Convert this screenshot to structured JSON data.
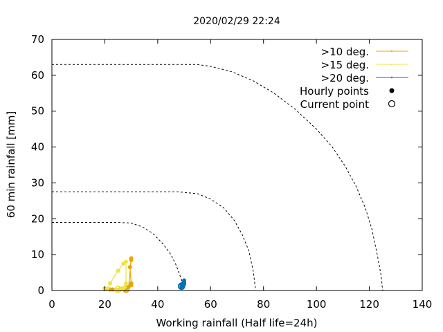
{
  "chart_data": {
    "type": "line",
    "title": "2020/02/29 22:24",
    "xlabel": "Working rainfall (Half life=24h)",
    "ylabel": "60 min rainfall [mm]",
    "xlim": [
      0,
      140
    ],
    "ylim": [
      0,
      70
    ],
    "xticks": [
      "0",
      "20",
      "40",
      "60",
      "80",
      "100",
      "120",
      "140"
    ],
    "yticks": [
      "0",
      "10",
      "20",
      "30",
      "40",
      "50",
      "60",
      "70"
    ],
    "grid": false,
    "legend_position": "top-right",
    "legend": [
      {
        "label": ">10 deg.",
        "kind": "line",
        "color": "#E5A800"
      },
      {
        "label": ">15 deg.",
        "kind": "line",
        "color": "#F0E442"
      },
      {
        "label": ">20 deg.",
        "kind": "line",
        "color": "#0072B2"
      },
      {
        "label": "Hourly points",
        "kind": "filled"
      },
      {
        "label": "Current point",
        "kind": "open"
      }
    ],
    "threshold_curves": [
      {
        "name": "",
        "x": [
          0,
          25,
          30,
          34,
          38,
          42,
          45,
          47,
          49,
          50
        ],
        "y": [
          19,
          19,
          18.8,
          17.8,
          16,
          13,
          10,
          7,
          3,
          0
        ]
      },
      {
        "name": "",
        "x": [
          0,
          48,
          55,
          60,
          65,
          69,
          72,
          74.5,
          76.2,
          77
        ],
        "y": [
          27.5,
          27.5,
          27,
          25.5,
          23,
          19.5,
          15.5,
          11,
          5,
          0
        ]
      },
      {
        "name": "",
        "x": [
          0,
          55,
          60,
          68,
          76,
          84,
          92,
          100,
          106,
          111,
          115,
          118.5,
          121,
          123,
          124.5,
          125
        ],
        "y": [
          63,
          63,
          62.5,
          61,
          58.5,
          55,
          50.5,
          45,
          40,
          34.5,
          29,
          23,
          17,
          10,
          4,
          0
        ]
      }
    ],
    "series": [
      {
        "name": ">10 deg.",
        "color": "#E5A800",
        "x": [
          20,
          22,
          23,
          30,
          30,
          29.5,
          30,
          30,
          29,
          28,
          27.5
        ],
        "y": [
          0.5,
          0.3,
          0.3,
          1.5,
          2,
          6.5,
          8.5,
          9,
          1,
          0.5,
          0.2
        ],
        "current": [
          28,
          0.4
        ]
      },
      {
        "name": ">15 deg.",
        "color": "#F0E442",
        "x": [
          20,
          21,
          22,
          25,
          27,
          28,
          28,
          27.5,
          27,
          26,
          25
        ],
        "y": [
          0.3,
          0.5,
          2,
          5.5,
          7.5,
          8,
          2,
          1,
          0.5,
          0.3,
          0.2
        ],
        "current": [
          25,
          0.3
        ]
      },
      {
        "name": ">20 deg.",
        "color": "#0072B2",
        "x": [
          49,
          49.5,
          50,
          50,
          50,
          49.5,
          49
        ],
        "y": [
          1,
          1.3,
          1.8,
          2.2,
          2.8,
          2,
          1.5
        ],
        "current": [
          49,
          1.2
        ]
      }
    ]
  }
}
